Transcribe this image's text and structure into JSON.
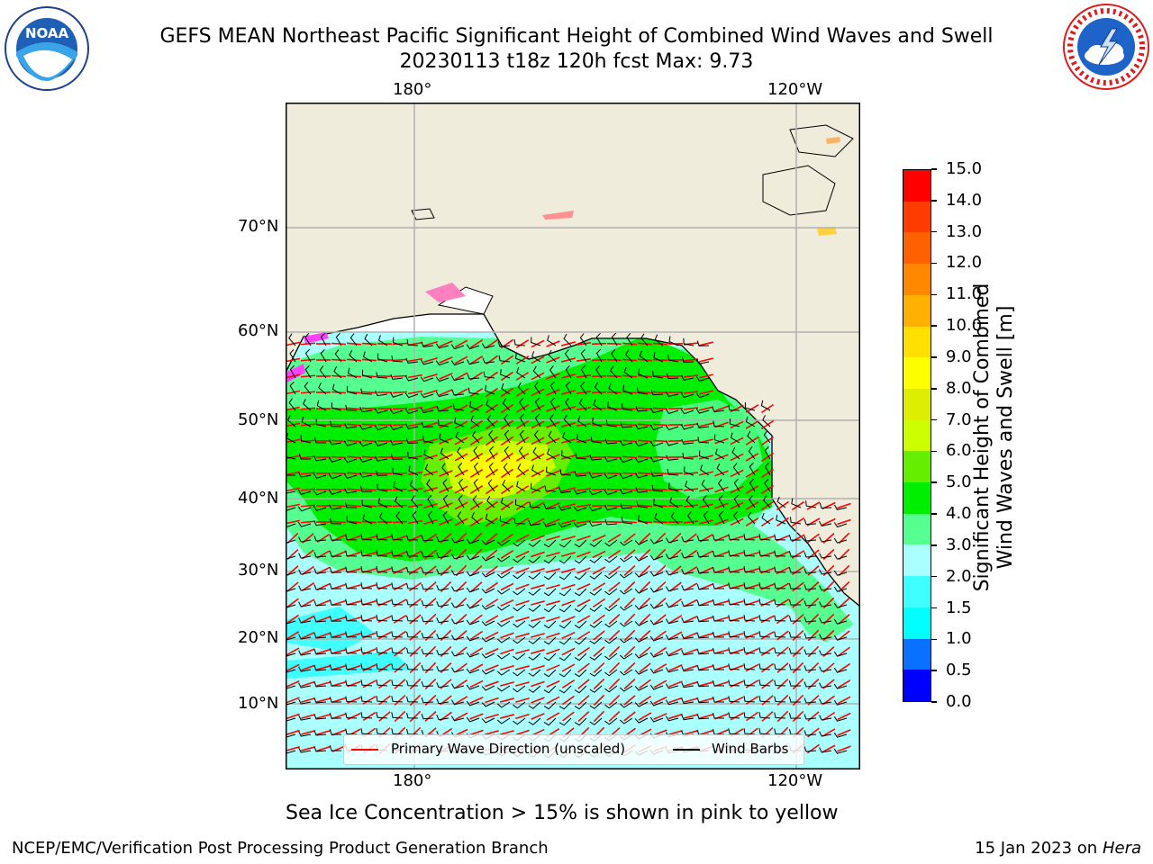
{
  "header": {
    "title_line1": "GEFS MEAN Northeast Pacific Significant Height of Combined Wind Waves and Swell",
    "title_line2": "20230113 t18z 120h fcst   Max: 9.73"
  },
  "logos": {
    "left": {
      "icon": "noaa-logo",
      "text": "NOAA",
      "ring_text": "NATIONAL OCEANIC AND ATMOSPHERIC ADMINISTRATION · U.S. DEPARTMENT OF COMMERCE"
    },
    "right": {
      "icon": "nws-logo",
      "ring_text": "NATIONAL WEATHER SERVICE"
    }
  },
  "map": {
    "lon_labels": [
      "180°",
      "120°W"
    ],
    "lat_labels": [
      "70°N",
      "60°N",
      "50°N",
      "40°N",
      "30°N",
      "20°N",
      "10°N"
    ],
    "legend": {
      "wave_label": "Primary Wave Direction (unscaled)",
      "barb_label": "Wind Barbs"
    },
    "colors": {
      "land": "#efecdc",
      "wave_arrow": "#ff0000",
      "barb": "#000000"
    }
  },
  "colorbar": {
    "label_line1": "Significant Height of Combined",
    "label_line2": "Wind Waves and Swell [m]",
    "ticks": [
      "0.0",
      "0.5",
      "1.0",
      "1.5",
      "2.0",
      "3.0",
      "4.0",
      "5.0",
      "6.0",
      "7.0",
      "8.0",
      "9.0",
      "10.0",
      "11.0",
      "12.0",
      "13.0",
      "14.0",
      "15.0"
    ],
    "colors": [
      "#0000ff",
      "#0a70ff",
      "#00ffff",
      "#40ffff",
      "#aaffff",
      "#55ff90",
      "#00ee00",
      "#66ee00",
      "#ccff00",
      "#ddee00",
      "#ffff00",
      "#ffe000",
      "#ffb000",
      "#ff8800",
      "#ff6000",
      "#ff3c00",
      "#ff0000"
    ]
  },
  "caption": "Sea Ice Concentration > 15% is shown in pink to yellow",
  "footer": {
    "left": "NCEP/EMC/Verification Post Processing Product Generation Branch",
    "right_prefix": "15 Jan 2023 on ",
    "right_italic": "Hera"
  }
}
